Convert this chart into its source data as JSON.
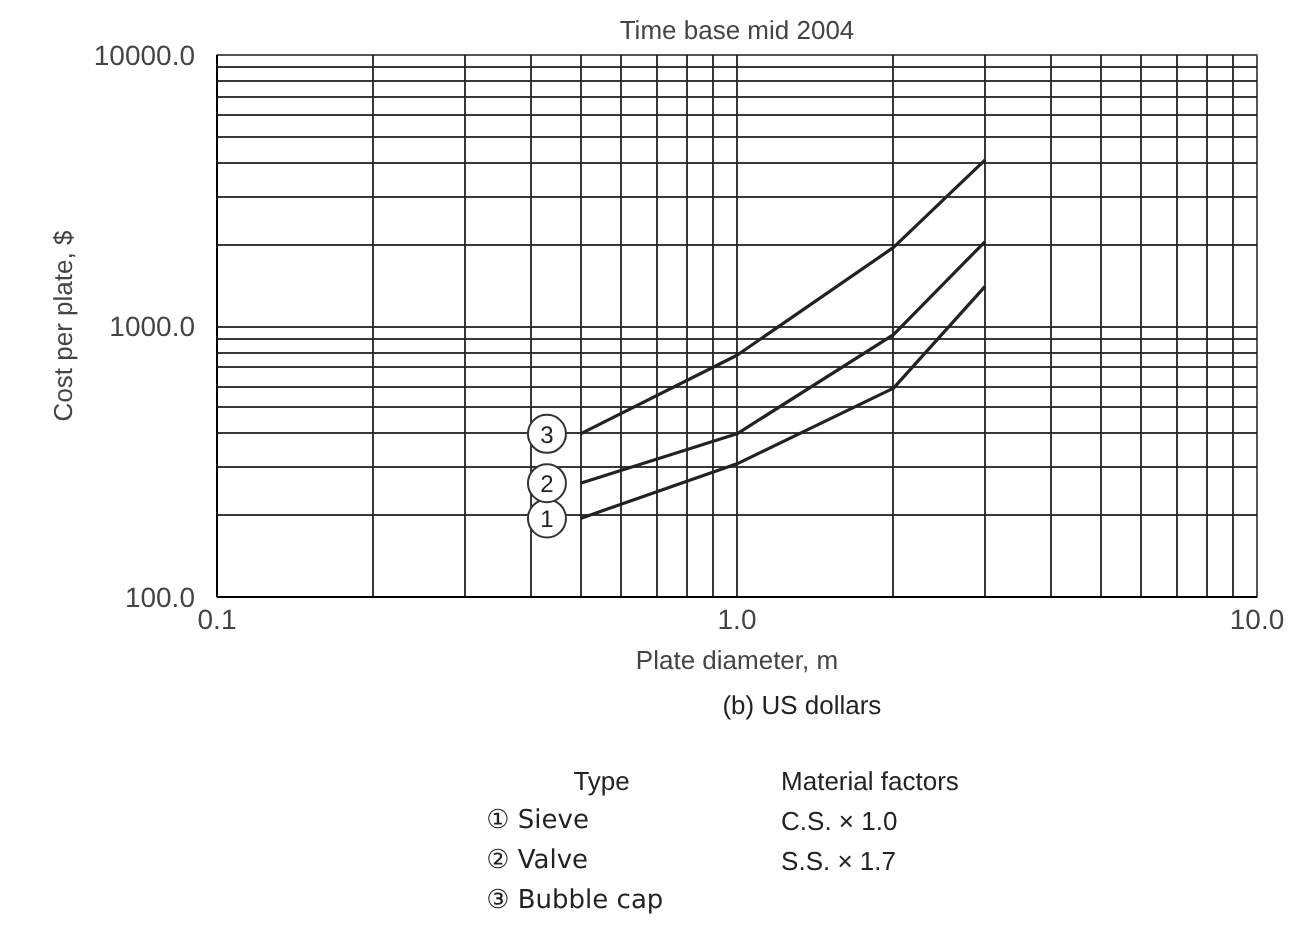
{
  "chart_data": {
    "type": "line",
    "title": "Time base mid 2004",
    "xlabel": "Plate diameter, m",
    "ylabel": "Cost per plate, $",
    "x": [
      0.5,
      1.0,
      2.0,
      3.0
    ],
    "series": [
      {
        "name": "1",
        "color": "#222222",
        "values": [
          195,
          310,
          590,
          1400
        ]
      },
      {
        "name": "2",
        "color": "#222222",
        "values": [
          263,
          400,
          930,
          2050
        ]
      },
      {
        "name": "3",
        "color": "#222222",
        "values": [
          400,
          780,
          1950,
          4100
        ]
      }
    ],
    "log": "xy",
    "grid": true,
    "line_style": "solid",
    "xlim": [
      0.1,
      10
    ],
    "ylim": [
      100,
      10000
    ],
    "xticks": [
      {
        "value": 0.1,
        "label": "0.1"
      },
      {
        "value": 1,
        "label": "1.0"
      },
      {
        "value": 10,
        "label": "10.0"
      }
    ],
    "yticks": [
      {
        "value": 100,
        "label": "100.0"
      },
      {
        "value": 1000,
        "label": "1000.0"
      },
      {
        "value": 10000,
        "label": "10000.0"
      }
    ],
    "annotations": [
      "(b) US dollars",
      "Type",
      "① Sieve",
      "② Valve",
      "③ Bubble cap",
      "Material factors",
      "C.S. × 1.0",
      "S.S. × 1.7"
    ]
  }
}
